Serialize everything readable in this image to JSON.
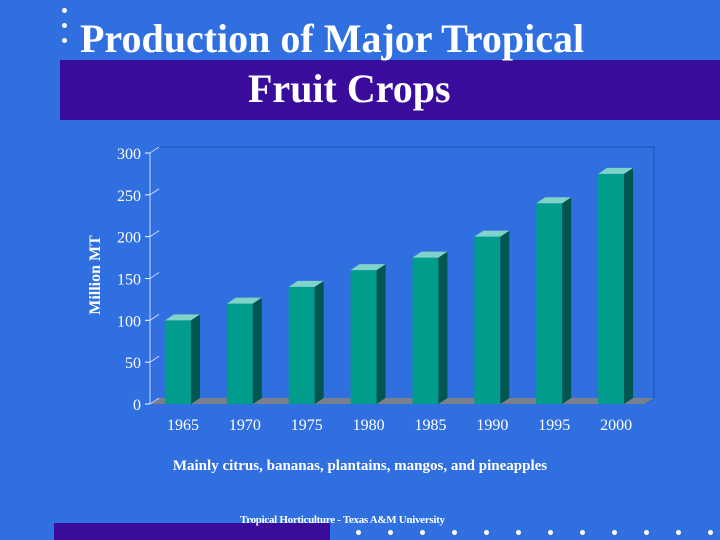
{
  "slide": {
    "title_line1": "Production of Major Tropical",
    "title_line2": "Fruit Crops",
    "caption": "Mainly citrus, bananas, plantains, mangos, and pineapples",
    "footer": "Tropical Horticulture - Texas A&M University"
  },
  "colors": {
    "background": "#2f6fe0",
    "band": "#3a0c9c",
    "bar_front": "#009c8c",
    "bar_side": "#00574f",
    "bar_top": "#7fd3c8",
    "text": "#ffffff"
  },
  "chart_data": {
    "type": "bar",
    "categories": [
      "1965",
      "1970",
      "1975",
      "1980",
      "1985",
      "1990",
      "1995",
      "2000"
    ],
    "values": [
      100,
      120,
      140,
      160,
      175,
      200,
      240,
      275
    ],
    "title": "",
    "xlabel": "",
    "ylabel": "Million MT",
    "ylim": [
      0,
      300
    ],
    "yticks": [
      0,
      50,
      100,
      150,
      200,
      250,
      300
    ],
    "grid": false,
    "legend": "none"
  }
}
